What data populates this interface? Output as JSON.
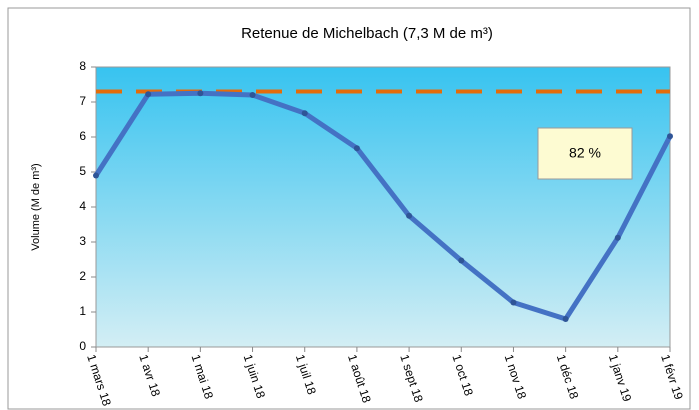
{
  "chart_data": {
    "type": "line",
    "title": "Retenue de Michelbach (7,3 M de m³)",
    "y_label": "Volume (M de m³)",
    "categories": [
      "1 mars 18",
      "1 avr 18",
      "1 mai 18",
      "1 juin 18",
      "1 juil 18",
      "1 août 18",
      "1 sept 18",
      "1 oct 18",
      "1 nov 18",
      "1 déc 18",
      "1 janv 19",
      "1 févr 19"
    ],
    "series": [
      {
        "name": "Volume",
        "color": "#4472c4",
        "values": [
          4.9,
          7.22,
          7.25,
          7.2,
          6.68,
          5.68,
          3.75,
          2.47,
          1.27,
          0.8,
          3.12,
          6.02
        ]
      }
    ],
    "reference_line": {
      "value": 7.3,
      "color": "#e46c0a"
    },
    "annotation": "82 %",
    "ylim": [
      0,
      8
    ],
    "yticks": [
      0,
      1,
      2,
      3,
      4,
      5,
      6,
      7,
      8
    ],
    "grid": false
  }
}
